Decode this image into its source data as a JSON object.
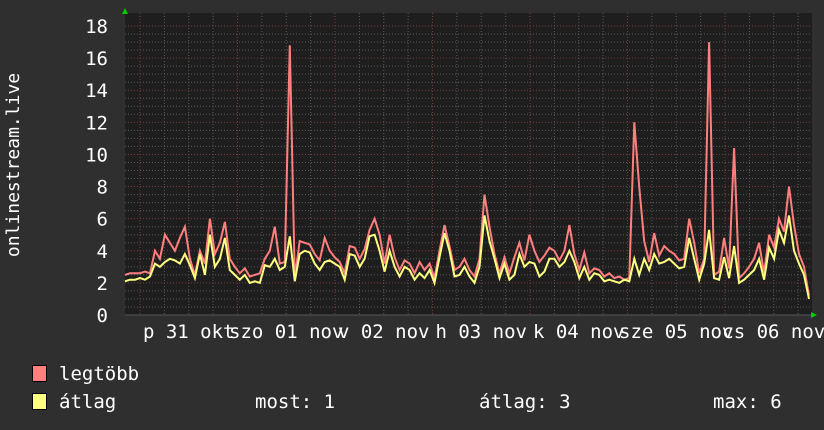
{
  "chart_data": {
    "type": "line",
    "title": "",
    "ylabel": "onlinestream.live",
    "xlabel": "",
    "ylim": [
      0,
      18
    ],
    "yticks": [
      "0",
      "2",
      "4",
      "6",
      "8",
      "10",
      "12",
      "14",
      "16",
      "18"
    ],
    "x_range": [
      "okt 30 20:00",
      "nov 06 21:00"
    ],
    "xticks": [
      "p 31 okt",
      "szo 01 nov",
      "v 02 nov",
      "h 03 nov",
      "k 04 nov",
      "sze 05 nov",
      "cs 06 nov"
    ],
    "grid": true,
    "colors": {
      "background": "#2f2f2f",
      "plot": "#1e1e1e",
      "grid_minor": "#5a5a5a",
      "grid_major": "#7a3a3a",
      "arrow": "#00cc00"
    },
    "series": [
      {
        "name": "legtöbb",
        "color": "#ff7f7f",
        "values": [
          2.5,
          2.6,
          2.6,
          2.6,
          2.7,
          2.6,
          4.0,
          3.5,
          5.0,
          4.5,
          4.0,
          4.8,
          5.5,
          3.5,
          2.5,
          4.0,
          3.2,
          6.0,
          3.8,
          4.5,
          5.8,
          3.5,
          3.0,
          2.6,
          2.9,
          2.4,
          2.5,
          2.6,
          3.5,
          4.0,
          5.5,
          3.2,
          3.3,
          16.8,
          2.3,
          4.6,
          4.5,
          4.4,
          3.8,
          3.4,
          4.8,
          4.0,
          3.6,
          3.3,
          2.6,
          4.3,
          4.2,
          3.5,
          4.1,
          5.3,
          6.0,
          5.0,
          3.2,
          5.0,
          3.6,
          2.8,
          3.4,
          3.2,
          2.6,
          3.3,
          2.8,
          3.2,
          2.3,
          4.0,
          5.6,
          4.3,
          2.8,
          3.0,
          3.5,
          2.8,
          2.4,
          3.5,
          7.5,
          5.5,
          3.8,
          2.6,
          3.6,
          2.6,
          3.6,
          4.5,
          3.4,
          5.0,
          4.0,
          3.3,
          3.7,
          4.2,
          4.0,
          3.4,
          4.0,
          5.6,
          3.8,
          2.8,
          3.9,
          2.6,
          2.9,
          2.8,
          2.4,
          2.6,
          2.3,
          2.4,
          2.2,
          2.3,
          12.0,
          8.0,
          4.6,
          3.3,
          5.1,
          3.7,
          4.3,
          4.0,
          3.8,
          3.4,
          3.5,
          6.0,
          4.5,
          2.6,
          3.5,
          17.0,
          2.5,
          2.7,
          4.8,
          2.9,
          10.4,
          2.3,
          2.6,
          3.0,
          3.5,
          4.5,
          2.6,
          5.0,
          4.2,
          6.0,
          5.2,
          8.0,
          5.6,
          3.8,
          3.0,
          1.2
        ]
      },
      {
        "name": "átlag",
        "color": "#ffff7f",
        "values": [
          2.1,
          2.2,
          2.2,
          2.3,
          2.2,
          2.4,
          3.2,
          3.0,
          3.3,
          3.5,
          3.4,
          3.2,
          3.8,
          3.1,
          2.3,
          3.8,
          2.5,
          5.0,
          3.0,
          3.5,
          4.8,
          2.8,
          2.5,
          2.2,
          2.5,
          2.0,
          2.1,
          2.0,
          3.1,
          3.0,
          3.5,
          2.8,
          3.0,
          4.9,
          2.1,
          3.8,
          4.0,
          3.9,
          3.2,
          2.8,
          3.3,
          3.4,
          3.2,
          3.0,
          2.2,
          3.8,
          3.7,
          3.0,
          3.5,
          4.9,
          5.0,
          4.0,
          2.7,
          4.0,
          3.0,
          2.4,
          3.0,
          2.8,
          2.2,
          2.6,
          2.3,
          2.8,
          2.0,
          3.6,
          5.1,
          4.0,
          2.4,
          2.5,
          3.0,
          2.4,
          2.0,
          3.0,
          6.2,
          4.6,
          3.5,
          2.3,
          3.2,
          2.2,
          2.5,
          3.8,
          3.0,
          3.3,
          3.2,
          2.4,
          2.7,
          3.5,
          3.5,
          3.0,
          3.3,
          4.0,
          3.3,
          2.3,
          3.0,
          2.2,
          2.6,
          2.5,
          2.1,
          2.2,
          2.1,
          2.0,
          2.2,
          2.1,
          3.5,
          2.5,
          3.5,
          2.8,
          3.8,
          3.2,
          3.3,
          3.5,
          3.2,
          2.9,
          3.0,
          4.8,
          3.5,
          2.2,
          3.2,
          5.3,
          2.3,
          2.2,
          3.6,
          2.3,
          4.3,
          2.0,
          2.2,
          2.5,
          2.8,
          3.5,
          2.2,
          4.2,
          3.5,
          5.3,
          4.5,
          6.2,
          4.0,
          3.2,
          2.5,
          1.0
        ]
      }
    ],
    "legend": {
      "placement": "bottom-left",
      "items": [
        "legtöbb",
        "átlag"
      ],
      "stats": {
        "current": "most: 1",
        "average": "átlag: 3",
        "max": "max: 6"
      }
    }
  }
}
